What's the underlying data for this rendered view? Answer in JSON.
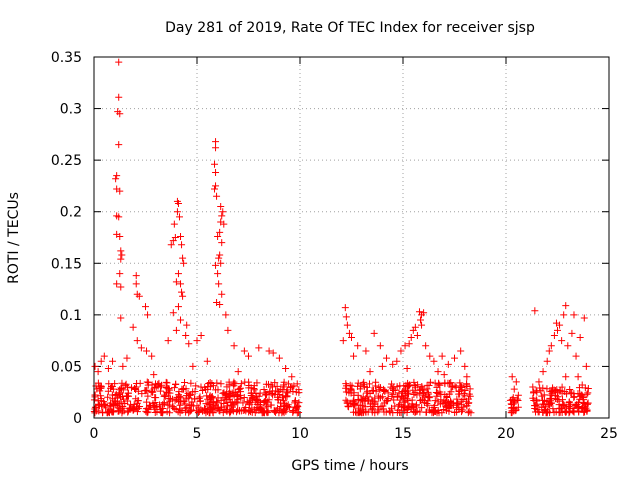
{
  "chart_data": {
    "type": "scatter",
    "title": "Day 281 of 2019, Rate Of TEC Index for receiver sjsp",
    "xlabel": "GPS time / hours",
    "ylabel": "ROTI / TECUs",
    "xlim": [
      0,
      25
    ],
    "ylim": [
      0,
      0.35
    ],
    "xticks": [
      0,
      5,
      10,
      15,
      20,
      25
    ],
    "xtick_labels": [
      "0",
      "5",
      "10",
      "15",
      "20",
      "25"
    ],
    "yticks": [
      0,
      0.05,
      0.1,
      0.15,
      0.2,
      0.25,
      0.3,
      0.35
    ],
    "ytick_labels": [
      "0",
      "0.05",
      "0.1",
      "0.15",
      "0.2",
      "0.25",
      "0.3",
      "0.35"
    ],
    "grid": true,
    "marker": "plus",
    "color": "#ff0000",
    "series": [
      {
        "name": "ROTI",
        "points": [
          [
            1.2,
            0.345
          ],
          [
            1.2,
            0.311
          ],
          [
            1.15,
            0.297
          ],
          [
            1.25,
            0.295
          ],
          [
            1.2,
            0.265
          ],
          [
            1.1,
            0.235
          ],
          [
            1.05,
            0.232
          ],
          [
            1.1,
            0.222
          ],
          [
            1.25,
            0.22
          ],
          [
            1.1,
            0.196
          ],
          [
            1.2,
            0.195
          ],
          [
            1.1,
            0.178
          ],
          [
            1.25,
            0.176
          ],
          [
            1.3,
            0.162
          ],
          [
            1.35,
            0.158
          ],
          [
            1.3,
            0.154
          ],
          [
            1.25,
            0.14
          ],
          [
            1.1,
            0.13
          ],
          [
            1.3,
            0.127
          ],
          [
            1.3,
            0.097
          ],
          [
            2.05,
            0.138
          ],
          [
            2.05,
            0.13
          ],
          [
            2.1,
            0.12
          ],
          [
            2.2,
            0.118
          ],
          [
            2.5,
            0.108
          ],
          [
            2.6,
            0.1
          ],
          [
            1.9,
            0.088
          ],
          [
            2.1,
            0.075
          ],
          [
            2.3,
            0.068
          ],
          [
            2.55,
            0.065
          ],
          [
            0.05,
            0.05
          ],
          [
            0.2,
            0.045
          ],
          [
            0.35,
            0.055
          ],
          [
            0.5,
            0.06
          ],
          [
            0.7,
            0.048
          ],
          [
            0.9,
            0.055
          ],
          [
            1.4,
            0.05
          ],
          [
            1.6,
            0.058
          ],
          [
            2.8,
            0.06
          ],
          [
            2.9,
            0.042
          ],
          [
            4.05,
            0.21
          ],
          [
            4.1,
            0.208
          ],
          [
            4.05,
            0.2
          ],
          [
            4.15,
            0.195
          ],
          [
            3.9,
            0.188
          ],
          [
            3.85,
            0.172
          ],
          [
            3.75,
            0.168
          ],
          [
            3.95,
            0.175
          ],
          [
            4.2,
            0.176
          ],
          [
            4.25,
            0.168
          ],
          [
            4.3,
            0.155
          ],
          [
            4.35,
            0.15
          ],
          [
            4.1,
            0.14
          ],
          [
            4.0,
            0.132
          ],
          [
            4.2,
            0.13
          ],
          [
            4.25,
            0.122
          ],
          [
            4.3,
            0.118
          ],
          [
            4.1,
            0.108
          ],
          [
            3.85,
            0.102
          ],
          [
            4.2,
            0.095
          ],
          [
            4.5,
            0.09
          ],
          [
            4.0,
            0.085
          ],
          [
            4.45,
            0.08
          ],
          [
            3.6,
            0.075
          ],
          [
            4.6,
            0.072
          ],
          [
            5.9,
            0.268
          ],
          [
            5.9,
            0.262
          ],
          [
            5.85,
            0.246
          ],
          [
            5.9,
            0.238
          ],
          [
            5.9,
            0.225
          ],
          [
            5.85,
            0.222
          ],
          [
            5.95,
            0.215
          ],
          [
            6.15,
            0.205
          ],
          [
            6.25,
            0.2
          ],
          [
            6.2,
            0.196
          ],
          [
            6.15,
            0.19
          ],
          [
            6.3,
            0.188
          ],
          [
            6.1,
            0.18
          ],
          [
            6.0,
            0.176
          ],
          [
            6.2,
            0.17
          ],
          [
            6.1,
            0.158
          ],
          [
            6.05,
            0.155
          ],
          [
            6.15,
            0.15
          ],
          [
            5.9,
            0.148
          ],
          [
            6.0,
            0.14
          ],
          [
            6.05,
            0.13
          ],
          [
            6.2,
            0.12
          ],
          [
            6.1,
            0.11
          ],
          [
            5.95,
            0.112
          ],
          [
            6.4,
            0.1
          ],
          [
            6.5,
            0.085
          ],
          [
            5.2,
            0.08
          ],
          [
            5.0,
            0.075
          ],
          [
            6.8,
            0.07
          ],
          [
            7.3,
            0.065
          ],
          [
            7.5,
            0.06
          ],
          [
            8.0,
            0.068
          ],
          [
            8.5,
            0.065
          ],
          [
            8.7,
            0.063
          ],
          [
            9.0,
            0.058
          ],
          [
            9.3,
            0.048
          ],
          [
            9.6,
            0.04
          ],
          [
            7.0,
            0.045
          ],
          [
            5.5,
            0.055
          ],
          [
            4.8,
            0.05
          ],
          [
            12.2,
            0.107
          ],
          [
            12.25,
            0.098
          ],
          [
            12.3,
            0.09
          ],
          [
            12.4,
            0.082
          ],
          [
            13.6,
            0.082
          ],
          [
            12.5,
            0.078
          ],
          [
            12.1,
            0.075
          ],
          [
            12.8,
            0.07
          ],
          [
            13.2,
            0.065
          ],
          [
            13.9,
            0.07
          ],
          [
            14.2,
            0.058
          ],
          [
            14.5,
            0.052
          ],
          [
            12.6,
            0.06
          ],
          [
            13.4,
            0.045
          ],
          [
            14.0,
            0.05
          ],
          [
            15.8,
            0.103
          ],
          [
            15.9,
            0.1
          ],
          [
            16.0,
            0.102
          ],
          [
            15.85,
            0.095
          ],
          [
            15.9,
            0.09
          ],
          [
            15.6,
            0.088
          ],
          [
            15.5,
            0.085
          ],
          [
            15.7,
            0.08
          ],
          [
            15.4,
            0.078
          ],
          [
            15.3,
            0.072
          ],
          [
            15.1,
            0.07
          ],
          [
            14.9,
            0.065
          ],
          [
            16.1,
            0.07
          ],
          [
            16.3,
            0.06
          ],
          [
            16.5,
            0.055
          ],
          [
            16.9,
            0.06
          ],
          [
            17.2,
            0.052
          ],
          [
            17.5,
            0.058
          ],
          [
            17.8,
            0.065
          ],
          [
            18.0,
            0.05
          ],
          [
            18.1,
            0.04
          ],
          [
            16.7,
            0.045
          ],
          [
            14.7,
            0.055
          ],
          [
            15.2,
            0.048
          ],
          [
            17.0,
            0.042
          ],
          [
            20.3,
            0.04
          ],
          [
            20.5,
            0.035
          ],
          [
            20.4,
            0.028
          ],
          [
            20.6,
            0.022
          ],
          [
            20.3,
            0.018
          ],
          [
            21.4,
            0.104
          ],
          [
            22.9,
            0.109
          ],
          [
            22.8,
            0.1
          ],
          [
            23.3,
            0.1
          ],
          [
            23.8,
            0.097
          ],
          [
            22.45,
            0.092
          ],
          [
            22.6,
            0.09
          ],
          [
            22.5,
            0.085
          ],
          [
            22.35,
            0.08
          ],
          [
            22.7,
            0.075
          ],
          [
            23.2,
            0.082
          ],
          [
            23.6,
            0.078
          ],
          [
            22.2,
            0.07
          ],
          [
            22.1,
            0.065
          ],
          [
            23.0,
            0.07
          ],
          [
            23.4,
            0.06
          ],
          [
            23.9,
            0.05
          ],
          [
            21.8,
            0.045
          ],
          [
            22.0,
            0.055
          ],
          [
            23.5,
            0.04
          ],
          [
            21.6,
            0.035
          ],
          [
            21.3,
            0.03
          ],
          [
            23.7,
            0.032
          ],
          [
            22.9,
            0.04
          ],
          [
            21.5,
            0.025
          ]
        ],
        "dense_bands": [
          {
            "x_range": [
              0,
              10
            ],
            "y_range": [
              0.005,
              0.035
            ]
          },
          {
            "x_range": [
              12.2,
              18.3
            ],
            "y_range": [
              0.005,
              0.035
            ]
          },
          {
            "x_range": [
              20.2,
              20.6
            ],
            "y_range": [
              0.005,
              0.02
            ]
          },
          {
            "x_range": [
              21.3,
              24.0
            ],
            "y_range": [
              0.005,
              0.03
            ]
          }
        ]
      }
    ]
  }
}
